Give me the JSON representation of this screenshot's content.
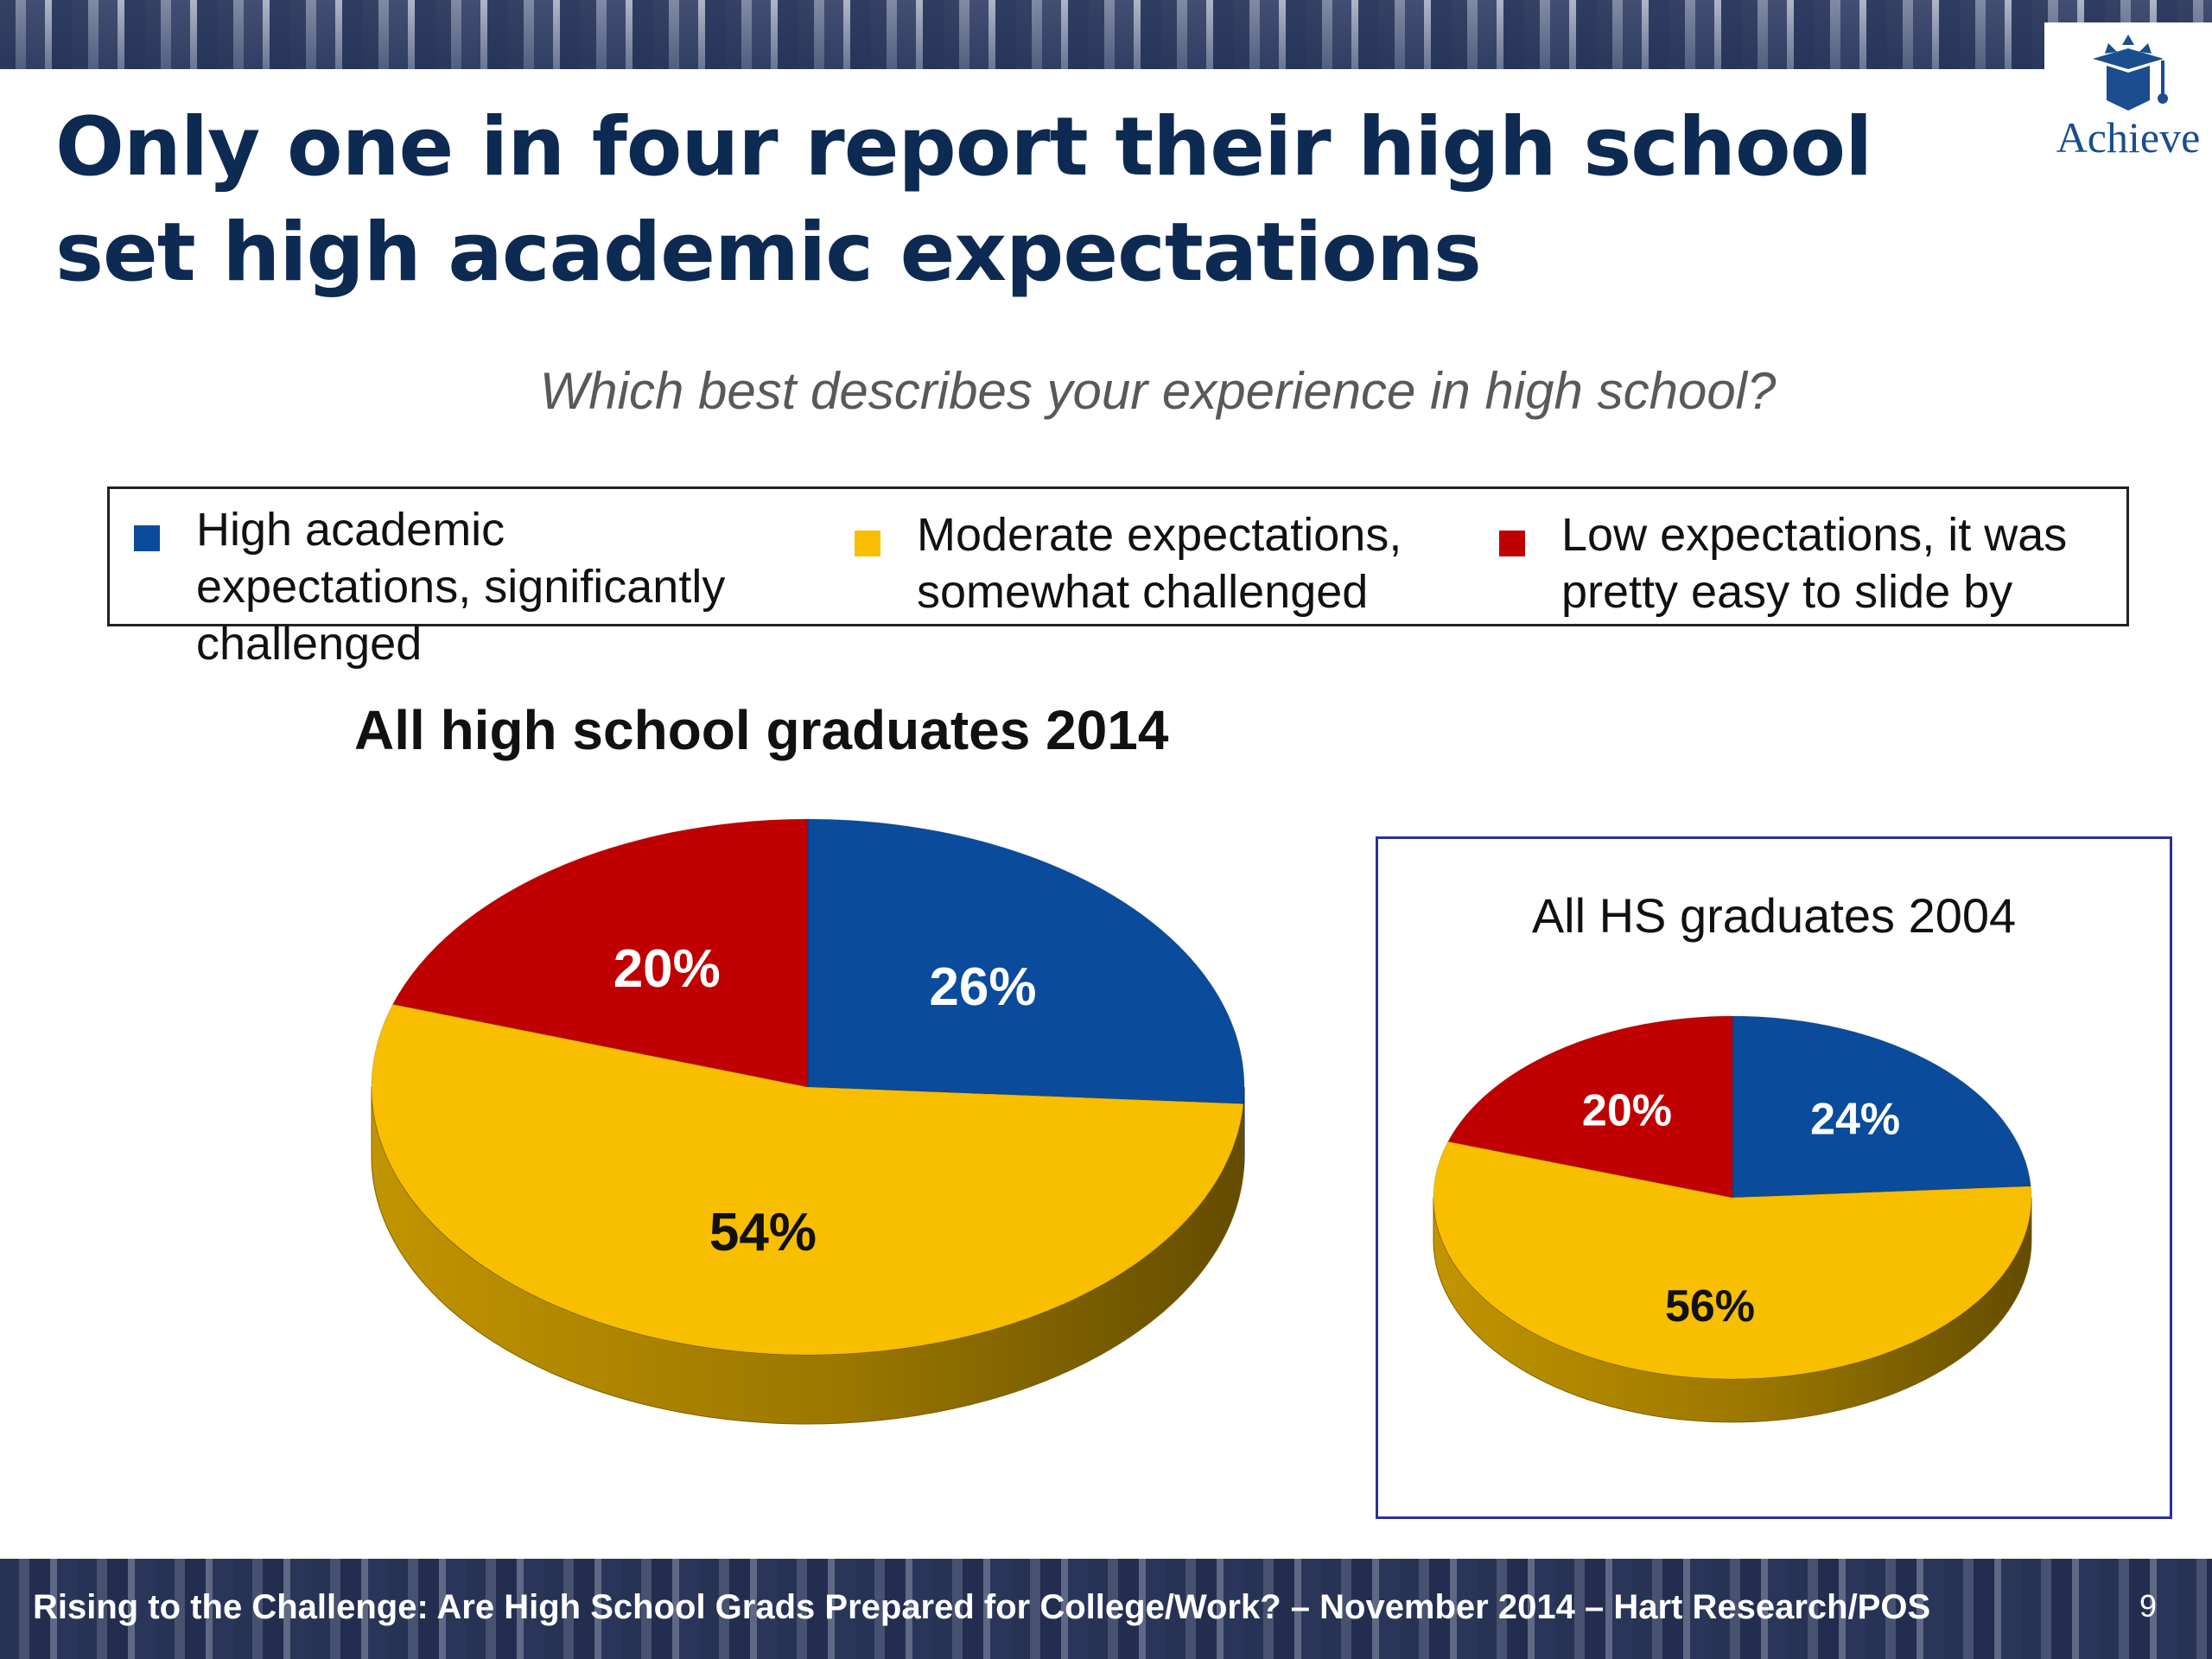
{
  "slide": {
    "title": "Only one in four report their high school set high academic expectations",
    "question": "Which best describes your experience in high school?",
    "logo_text": "Achieve",
    "footer": "Rising to the Challenge:  Are High School Grads Prepared for College/Work? – November 2014 – Hart Research/POS",
    "page_number": "9"
  },
  "legend": [
    {
      "label": "High academic expectations, significantly challenged",
      "color": "#0a4b9b"
    },
    {
      "label": "Moderate expectations, somewhat challenged",
      "color": "#f8be00"
    },
    {
      "label": "Low expectations, it was pretty easy to slide by",
      "color": "#c00000"
    }
  ],
  "chart_data": [
    {
      "type": "pie",
      "title": "All high school graduates 2014",
      "categories": [
        "High academic expectations, significantly challenged",
        "Moderate expectations, somewhat challenged",
        "Low expectations, it was pretty easy to slide by"
      ],
      "values": [
        26,
        54,
        20
      ],
      "labels": [
        "26%",
        "54%",
        "20%"
      ],
      "colors": [
        "#0a4b9b",
        "#f8be00",
        "#c00000"
      ],
      "label_colors": [
        "#ffffff",
        "#111111",
        "#ffffff"
      ]
    },
    {
      "type": "pie",
      "title": "All HS graduates 2004",
      "categories": [
        "High academic expectations, significantly challenged",
        "Moderate expectations, somewhat challenged",
        "Low expectations, it was pretty easy to slide by"
      ],
      "values": [
        24,
        56,
        20
      ],
      "labels": [
        "24%",
        "56%",
        "20%"
      ],
      "colors": [
        "#0a4b9b",
        "#f8be00",
        "#c00000"
      ],
      "label_colors": [
        "#ffffff",
        "#111111",
        "#ffffff"
      ]
    }
  ]
}
